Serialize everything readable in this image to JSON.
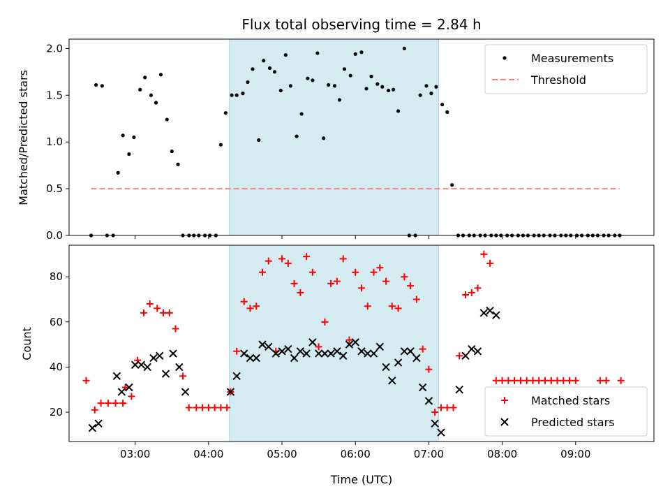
{
  "colors": {
    "measurements": "#000000",
    "threshold": "#ff7f7f",
    "matched": "#ff0000",
    "predicted": "#000000",
    "window_fill": "#d4ebf1"
  },
  "chart_data": [
    {
      "type": "scatter",
      "title": "Flux total observing time = 2.84 h",
      "xlabel": "",
      "ylabel": "Matched/Predicted stars",
      "x_axis": "time (UTC, hours)",
      "xlim": [
        "02:06",
        "10:04"
      ],
      "ylim": [
        0,
        2.1
      ],
      "x_ticks": [
        "03:00",
        "04:00",
        "05:00",
        "06:00",
        "07:00",
        "08:00",
        "09:00"
      ],
      "y_ticks": [
        "0.0",
        "0.5",
        "1.0",
        "1.5",
        "2.0"
      ],
      "highlight_window": [
        "04:17",
        "07:08"
      ],
      "legend": "top-right",
      "grid": false,
      "series": [
        {
          "name": "Measurements",
          "marker": "dot",
          "points": [
            [
              "02:24",
              0.0
            ],
            [
              "02:28",
              1.61
            ],
            [
              "02:33",
              1.6
            ],
            [
              "02:37",
              0.0
            ],
            [
              "02:42",
              0.0
            ],
            [
              "02:46",
              0.67
            ],
            [
              "02:50",
              1.07
            ],
            [
              "02:55",
              0.87
            ],
            [
              "02:59",
              1.05
            ],
            [
              "03:04",
              1.56
            ],
            [
              "03:08",
              1.69
            ],
            [
              "03:13",
              1.5
            ],
            [
              "03:17",
              1.42
            ],
            [
              "03:21",
              1.72
            ],
            [
              "03:26",
              1.24
            ],
            [
              "03:30",
              0.9
            ],
            [
              "03:35",
              0.76
            ],
            [
              "03:39",
              0.0
            ],
            [
              "03:44",
              0.0
            ],
            [
              "03:48",
              0.0
            ],
            [
              "03:52",
              0.0
            ],
            [
              "03:57",
              0.0
            ],
            [
              "04:01",
              0.0
            ],
            [
              "04:06",
              0.0
            ],
            [
              "04:10",
              0.97
            ],
            [
              "04:14",
              1.31
            ],
            [
              "04:19",
              1.5
            ],
            [
              "04:23",
              1.5
            ],
            [
              "04:28",
              1.52
            ],
            [
              "04:32",
              1.64
            ],
            [
              "04:36",
              1.78
            ],
            [
              "04:41",
              1.02
            ],
            [
              "04:45",
              1.87
            ],
            [
              "04:50",
              1.79
            ],
            [
              "04:54",
              1.75
            ],
            [
              "04:59",
              1.55
            ],
            [
              "05:03",
              1.93
            ],
            [
              "05:07",
              1.6
            ],
            [
              "05:12",
              1.06
            ],
            [
              "05:16",
              1.3
            ],
            [
              "05:21",
              1.68
            ],
            [
              "05:25",
              1.66
            ],
            [
              "05:29",
              1.95
            ],
            [
              "05:34",
              1.04
            ],
            [
              "05:38",
              1.61
            ],
            [
              "05:43",
              1.6
            ],
            [
              "05:47",
              1.45
            ],
            [
              "05:51",
              1.78
            ],
            [
              "05:56",
              1.71
            ],
            [
              "06:00",
              1.94
            ],
            [
              "06:05",
              1.96
            ],
            [
              "06:09",
              1.57
            ],
            [
              "06:13",
              1.7
            ],
            [
              "06:18",
              1.62
            ],
            [
              "06:22",
              1.59
            ],
            [
              "06:27",
              1.55
            ],
            [
              "06:31",
              1.56
            ],
            [
              "06:35",
              1.33
            ],
            [
              "06:40",
              2.0
            ],
            [
              "06:44",
              0.0
            ],
            [
              "06:49",
              0.0
            ],
            [
              "06:53",
              1.5
            ],
            [
              "06:58",
              1.6
            ],
            [
              "07:02",
              1.52
            ],
            [
              "07:06",
              1.59
            ],
            [
              "07:11",
              1.4
            ],
            [
              "07:15",
              1.32
            ],
            [
              "07:19",
              0.54
            ],
            [
              "07:24",
              0.0
            ],
            [
              "07:28",
              0.0
            ],
            [
              "07:33",
              0.0
            ],
            [
              "07:37",
              0.0
            ],
            [
              "07:42",
              0.0
            ],
            [
              "07:46",
              0.0
            ],
            [
              "07:51",
              0.0
            ],
            [
              "07:55",
              0.0
            ],
            [
              "07:59",
              0.0
            ],
            [
              "08:04",
              0.0
            ],
            [
              "08:08",
              0.0
            ],
            [
              "08:13",
              0.0
            ],
            [
              "08:17",
              0.0
            ],
            [
              "08:21",
              0.0
            ],
            [
              "08:26",
              0.0
            ],
            [
              "08:30",
              0.0
            ],
            [
              "08:34",
              0.0
            ],
            [
              "08:39",
              0.0
            ],
            [
              "08:43",
              0.0
            ],
            [
              "08:48",
              0.0
            ],
            [
              "08:52",
              0.0
            ],
            [
              "08:56",
              0.0
            ],
            [
              "09:01",
              0.0
            ],
            [
              "09:05",
              0.0
            ],
            [
              "09:10",
              0.0
            ],
            [
              "09:14",
              0.0
            ],
            [
              "09:18",
              0.0
            ],
            [
              "09:23",
              0.0
            ],
            [
              "09:27",
              0.0
            ],
            [
              "09:32",
              0.0
            ],
            [
              "09:36",
              0.0
            ]
          ]
        },
        {
          "name": "Threshold",
          "style": "dashed",
          "points": [
            [
              "02:24",
              0.5
            ],
            [
              "09:36",
              0.5
            ]
          ]
        }
      ]
    },
    {
      "type": "scatter",
      "title": "",
      "xlabel": "Time (UTC)",
      "ylabel": "Count",
      "x_axis": "time (UTC, hours)",
      "xlim": [
        "02:06",
        "10:04"
      ],
      "ylim": [
        7,
        94
      ],
      "x_ticks": [
        "03:00",
        "04:00",
        "05:00",
        "06:00",
        "07:00",
        "08:00",
        "09:00"
      ],
      "y_ticks": [
        "20",
        "40",
        "60",
        "80"
      ],
      "highlight_window": [
        "04:17",
        "07:08"
      ],
      "legend": "bottom-right",
      "grid": false,
      "series": [
        {
          "name": "Matched stars",
          "marker": "plus",
          "points": [
            [
              "02:20",
              34
            ],
            [
              "02:27",
              21
            ],
            [
              "02:32",
              24
            ],
            [
              "02:38",
              24
            ],
            [
              "02:44",
              24
            ],
            [
              "02:50",
              24
            ],
            [
              "02:52",
              31
            ],
            [
              "02:57",
              27
            ],
            [
              "03:02",
              43
            ],
            [
              "03:07",
              64
            ],
            [
              "03:12",
              68
            ],
            [
              "03:18",
              66
            ],
            [
              "03:23",
              64
            ],
            [
              "03:28",
              64
            ],
            [
              "03:33",
              57
            ],
            [
              "03:39",
              36
            ],
            [
              "03:44",
              22
            ],
            [
              "03:50",
              22
            ],
            [
              "03:55",
              22
            ],
            [
              "04:00",
              22
            ],
            [
              "04:05",
              22
            ],
            [
              "04:10",
              22
            ],
            [
              "04:15",
              22
            ],
            [
              "04:18",
              29
            ],
            [
              "04:23",
              47
            ],
            [
              "04:29",
              69
            ],
            [
              "04:34",
              66
            ],
            [
              "04:39",
              67
            ],
            [
              "04:44",
              82
            ],
            [
              "04:49",
              87
            ],
            [
              "04:55",
              47
            ],
            [
              "05:00",
              88
            ],
            [
              "05:05",
              86
            ],
            [
              "05:10",
              77
            ],
            [
              "05:15",
              73
            ],
            [
              "05:20",
              89
            ],
            [
              "05:25",
              82
            ],
            [
              "05:30",
              49
            ],
            [
              "05:35",
              60
            ],
            [
              "05:40",
              77
            ],
            [
              "05:45",
              78
            ],
            [
              "05:50",
              88
            ],
            [
              "05:55",
              52
            ],
            [
              "06:00",
              82
            ],
            [
              "06:05",
              75
            ],
            [
              "06:10",
              67
            ],
            [
              "06:15",
              82
            ],
            [
              "06:20",
              84
            ],
            [
              "06:25",
              78
            ],
            [
              "06:30",
              67
            ],
            [
              "06:35",
              66
            ],
            [
              "06:40",
              80
            ],
            [
              "06:45",
              76
            ],
            [
              "06:50",
              70
            ],
            [
              "06:55",
              48
            ],
            [
              "07:00",
              39
            ],
            [
              "07:05",
              20
            ],
            [
              "07:10",
              22
            ],
            [
              "07:15",
              22
            ],
            [
              "07:20",
              22
            ],
            [
              "07:25",
              45
            ],
            [
              "07:30",
              72
            ],
            [
              "07:35",
              73
            ],
            [
              "07:40",
              75
            ],
            [
              "07:45",
              90
            ],
            [
              "07:50",
              86
            ],
            [
              "07:55",
              34
            ],
            [
              "08:00",
              34
            ],
            [
              "08:05",
              34
            ],
            [
              "08:10",
              34
            ],
            [
              "08:15",
              34
            ],
            [
              "08:20",
              34
            ],
            [
              "08:25",
              34
            ],
            [
              "08:30",
              34
            ],
            [
              "08:35",
              34
            ],
            [
              "08:40",
              34
            ],
            [
              "08:45",
              34
            ],
            [
              "08:50",
              34
            ],
            [
              "08:55",
              34
            ],
            [
              "09:00",
              34
            ],
            [
              "09:20",
              34
            ],
            [
              "09:25",
              34
            ],
            [
              "09:37",
              34
            ]
          ]
        },
        {
          "name": "Predicted stars",
          "marker": "x",
          "points": [
            [
              "02:25",
              13
            ],
            [
              "02:30",
              15
            ],
            [
              "02:45",
              36
            ],
            [
              "02:49",
              29
            ],
            [
              "02:55",
              31
            ],
            [
              "03:00",
              41
            ],
            [
              "03:05",
              41
            ],
            [
              "03:10",
              40
            ],
            [
              "03:15",
              44
            ],
            [
              "03:20",
              45
            ],
            [
              "03:25",
              37
            ],
            [
              "03:31",
              46
            ],
            [
              "03:36",
              40
            ],
            [
              "03:41",
              29
            ],
            [
              "04:18",
              29
            ],
            [
              "04:23",
              36
            ],
            [
              "04:29",
              46
            ],
            [
              "04:34",
              44
            ],
            [
              "04:39",
              44
            ],
            [
              "04:44",
              50
            ],
            [
              "04:49",
              49
            ],
            [
              "04:55",
              46
            ],
            [
              "05:00",
              47
            ],
            [
              "05:05",
              48
            ],
            [
              "05:10",
              44
            ],
            [
              "05:15",
              47
            ],
            [
              "05:20",
              46
            ],
            [
              "05:25",
              51
            ],
            [
              "05:30",
              46
            ],
            [
              "05:35",
              46
            ],
            [
              "05:40",
              46
            ],
            [
              "05:45",
              47
            ],
            [
              "05:50",
              45
            ],
            [
              "05:55",
              50
            ],
            [
              "06:00",
              51
            ],
            [
              "06:05",
              47
            ],
            [
              "06:10",
              46
            ],
            [
              "06:15",
              46
            ],
            [
              "06:20",
              49
            ],
            [
              "06:25",
              40
            ],
            [
              "06:30",
              34
            ],
            [
              "06:35",
              42
            ],
            [
              "06:40",
              47
            ],
            [
              "06:45",
              47
            ],
            [
              "06:50",
              44
            ],
            [
              "06:55",
              31
            ],
            [
              "07:00",
              25
            ],
            [
              "07:05",
              15
            ],
            [
              "07:10",
              11
            ],
            [
              "07:25",
              30
            ],
            [
              "07:30",
              45
            ],
            [
              "07:35",
              48
            ],
            [
              "07:40",
              47
            ],
            [
              "07:45",
              64
            ],
            [
              "07:50",
              65
            ],
            [
              "07:55",
              63
            ]
          ]
        }
      ]
    }
  ]
}
